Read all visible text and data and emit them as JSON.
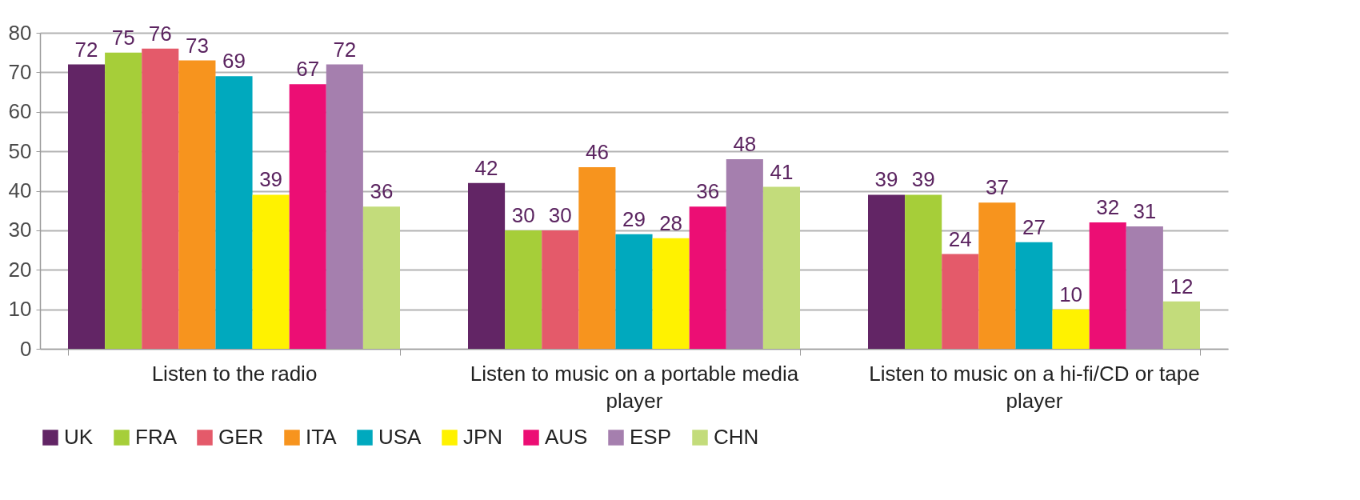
{
  "chart_data": {
    "type": "bar",
    "categories": [
      "Listen to the radio",
      "Listen to music on a portable media player",
      "Listen to music on a hi-fi/CD or tape player"
    ],
    "series": [
      {
        "name": "UK",
        "color": "#622565",
        "values": [
          72,
          42,
          39
        ]
      },
      {
        "name": "FRA",
        "color": "#a6ce39",
        "values": [
          75,
          30,
          39
        ]
      },
      {
        "name": "GER",
        "color": "#e45a6a",
        "values": [
          76,
          30,
          24
        ]
      },
      {
        "name": "ITA",
        "color": "#f7941e",
        "values": [
          73,
          46,
          37
        ]
      },
      {
        "name": "USA",
        "color": "#00a9be",
        "values": [
          69,
          29,
          27
        ]
      },
      {
        "name": "JPN",
        "color": "#fff200",
        "values": [
          39,
          28,
          10
        ]
      },
      {
        "name": "AUS",
        "color": "#ec0e74",
        "values": [
          67,
          36,
          32
        ]
      },
      {
        "name": "ESP",
        "color": "#a57fae",
        "values": [
          72,
          48,
          31
        ]
      },
      {
        "name": "CHN",
        "color": "#c3dc7b",
        "values": [
          36,
          41,
          12
        ]
      }
    ],
    "ylim": [
      0,
      80
    ],
    "yticks": [
      0,
      10,
      20,
      30,
      40,
      50,
      60,
      70,
      80
    ],
    "grid": "y",
    "legend": "bottom",
    "data_labels": true
  }
}
